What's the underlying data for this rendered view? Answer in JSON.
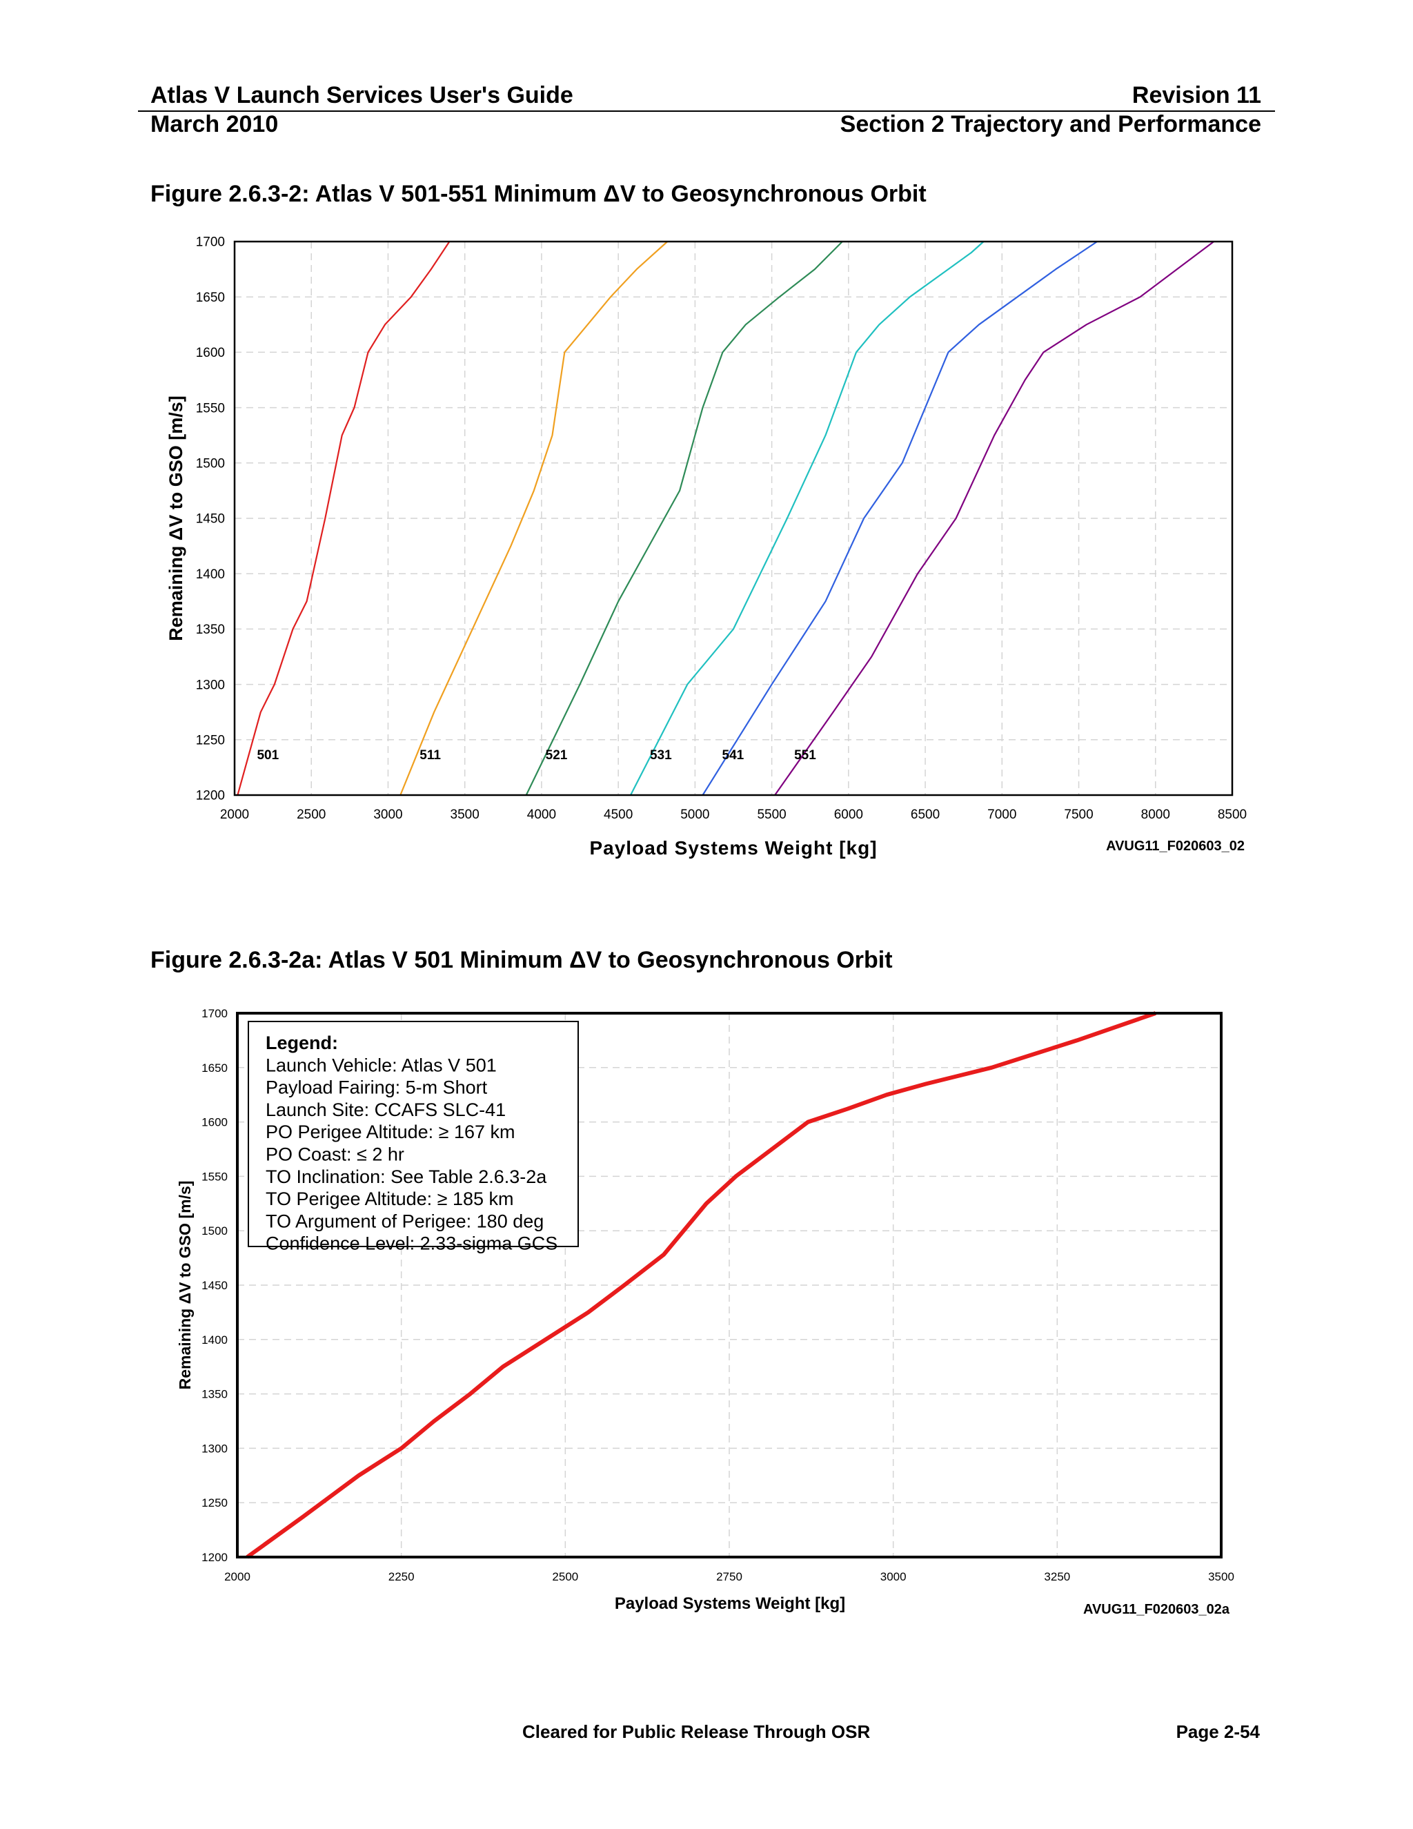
{
  "header": {
    "title": "Atlas V Launch Services User's Guide",
    "revision": "Revision 11",
    "date": "March 2010",
    "section": "Section 2 Trajectory and Performance"
  },
  "footer": {
    "release": "Cleared for Public Release Through OSR",
    "page": "Page 2-54"
  },
  "chart_data": [
    {
      "type": "line",
      "title": "Figure 2.6.3-2: Atlas V 501-551 Minimum ΔV to Geosynchronous Orbit",
      "xlabel": "Payload Systems Weight [kg]",
      "ylabel": "Remaining ΔV to GSO [m/s]",
      "figure_id": "AVUG11_F020603_02",
      "xlim": [
        2000,
        8500
      ],
      "ylim": [
        1200,
        1700
      ],
      "xticks": [
        "2000",
        "2500",
        "3000",
        "3500",
        "4000",
        "4500",
        "5000",
        "5500",
        "6000",
        "6500",
        "7000",
        "7500",
        "8000",
        "8500"
      ],
      "yticks": [
        "1200",
        "1250",
        "1300",
        "1350",
        "1400",
        "1450",
        "1500",
        "1550",
        "1600",
        "1650",
        "1700"
      ],
      "grid": true,
      "series": [
        {
          "name": "501",
          "color": "#e02020",
          "x": [
            2020,
            2170,
            2260,
            2380,
            2470,
            2590,
            2700,
            2780,
            2870,
            2980,
            3150,
            3280,
            3400
          ],
          "y": [
            1200,
            1275,
            1300,
            1350,
            1375,
            1450,
            1525,
            1550,
            1600,
            1625,
            1650,
            1675,
            1700
          ]
        },
        {
          "name": "511",
          "color": "#f0a020",
          "x": [
            3080,
            3300,
            3550,
            3800,
            3950,
            4070,
            4150,
            4300,
            4450,
            4620,
            4820
          ],
          "y": [
            1200,
            1275,
            1350,
            1425,
            1475,
            1525,
            1600,
            1625,
            1650,
            1675,
            1700
          ]
        },
        {
          "name": "521",
          "color": "#2e8b57",
          "x": [
            3900,
            4250,
            4500,
            4700,
            4900,
            5050,
            5180,
            5330,
            5550,
            5780,
            5960
          ],
          "y": [
            1200,
            1300,
            1375,
            1425,
            1475,
            1550,
            1600,
            1625,
            1650,
            1675,
            1700
          ]
        },
        {
          "name": "531",
          "color": "#20c0c0",
          "x": [
            4580,
            4950,
            5250,
            5600,
            5850,
            6050,
            6200,
            6400,
            6650,
            6800,
            6880
          ],
          "y": [
            1200,
            1300,
            1350,
            1450,
            1525,
            1600,
            1625,
            1650,
            1675,
            1690,
            1700
          ]
        },
        {
          "name": "541",
          "color": "#3060e0",
          "x": [
            5050,
            5500,
            5850,
            6100,
            6350,
            6650,
            6850,
            7100,
            7350,
            7620
          ],
          "y": [
            1200,
            1300,
            1375,
            1450,
            1500,
            1600,
            1625,
            1650,
            1675,
            1700
          ]
        },
        {
          "name": "551",
          "color": "#800080",
          "x": [
            5520,
            5900,
            6150,
            6450,
            6700,
            6950,
            7150,
            7270,
            7550,
            7900,
            8380
          ],
          "y": [
            1200,
            1275,
            1325,
            1400,
            1450,
            1525,
            1575,
            1600,
            1625,
            1650,
            1700
          ]
        }
      ]
    },
    {
      "type": "line",
      "title": "Figure 2.6.3-2a: Atlas V 501 Minimum ΔV to Geosynchronous Orbit",
      "xlabel": "Payload Systems Weight [kg]",
      "ylabel": "Remaining ΔV to GSO [m/s]",
      "figure_id": "AVUG11_F020603_02a",
      "xlim": [
        2000,
        3500
      ],
      "ylim": [
        1200,
        1700
      ],
      "xticks": [
        "2000",
        "2250",
        "2500",
        "2750",
        "3000",
        "3250",
        "3500"
      ],
      "yticks": [
        "1200",
        "1250",
        "1300",
        "1350",
        "1400",
        "1450",
        "1500",
        "1550",
        "1600",
        "1650",
        "1700"
      ],
      "grid": true,
      "legend_placement": "top-left",
      "legend": [
        "Legend:",
        "Launch Vehicle: Atlas V 501",
        "Payload Fairing: 5-m Short",
        "Launch Site: CCAFS SLC-41",
        "PO Perigee Altitude: ≥ 167 km",
        "PO Coast: ≤ 2 hr",
        "TO Inclination: See Table 2.6.3-2a",
        "TO Perigee Altitude: ≥ 185 km",
        "TO Argument of Perigee: 180 deg",
        "Confidence Level: 2.33-sigma GCS"
      ],
      "series": [
        {
          "color": "#e81c1c",
          "x": [
            2015,
            2100,
            2185,
            2250,
            2300,
            2355,
            2405,
            2470,
            2535,
            2590,
            2650,
            2715,
            2760,
            2815,
            2870,
            2930,
            2990,
            3050,
            3150,
            3280,
            3400
          ],
          "y": [
            1200,
            1237,
            1275,
            1300,
            1325,
            1350,
            1375,
            1400,
            1425,
            1450,
            1478,
            1525,
            1550,
            1575,
            1600,
            1612,
            1625,
            1635,
            1650,
            1675,
            1700
          ]
        }
      ]
    }
  ]
}
